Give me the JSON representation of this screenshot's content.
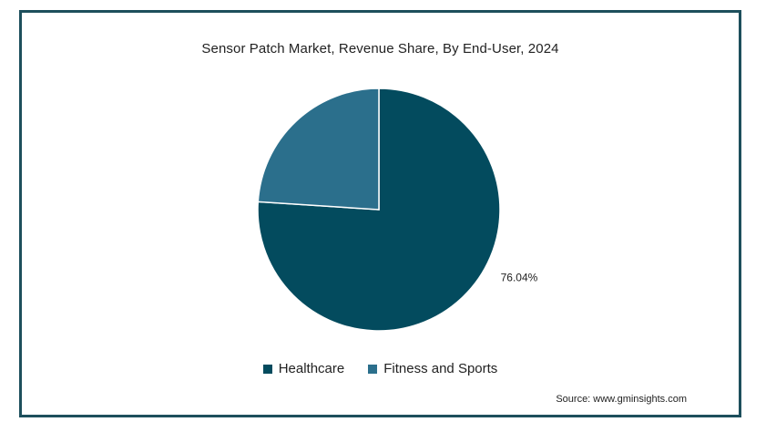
{
  "chart_data": {
    "type": "pie",
    "title": "Sensor Patch Market, Revenue Share, By End-User, 2024",
    "slices": [
      {
        "name": "Healthcare",
        "value": 76.04,
        "color": "#034b5e",
        "label": "76.04%"
      },
      {
        "name": "Fitness and Sports",
        "value": 23.96,
        "color": "#2b6f8c",
        "label": ""
      }
    ],
    "legend_position": "bottom"
  },
  "source": "Source: www.gminsights.com"
}
